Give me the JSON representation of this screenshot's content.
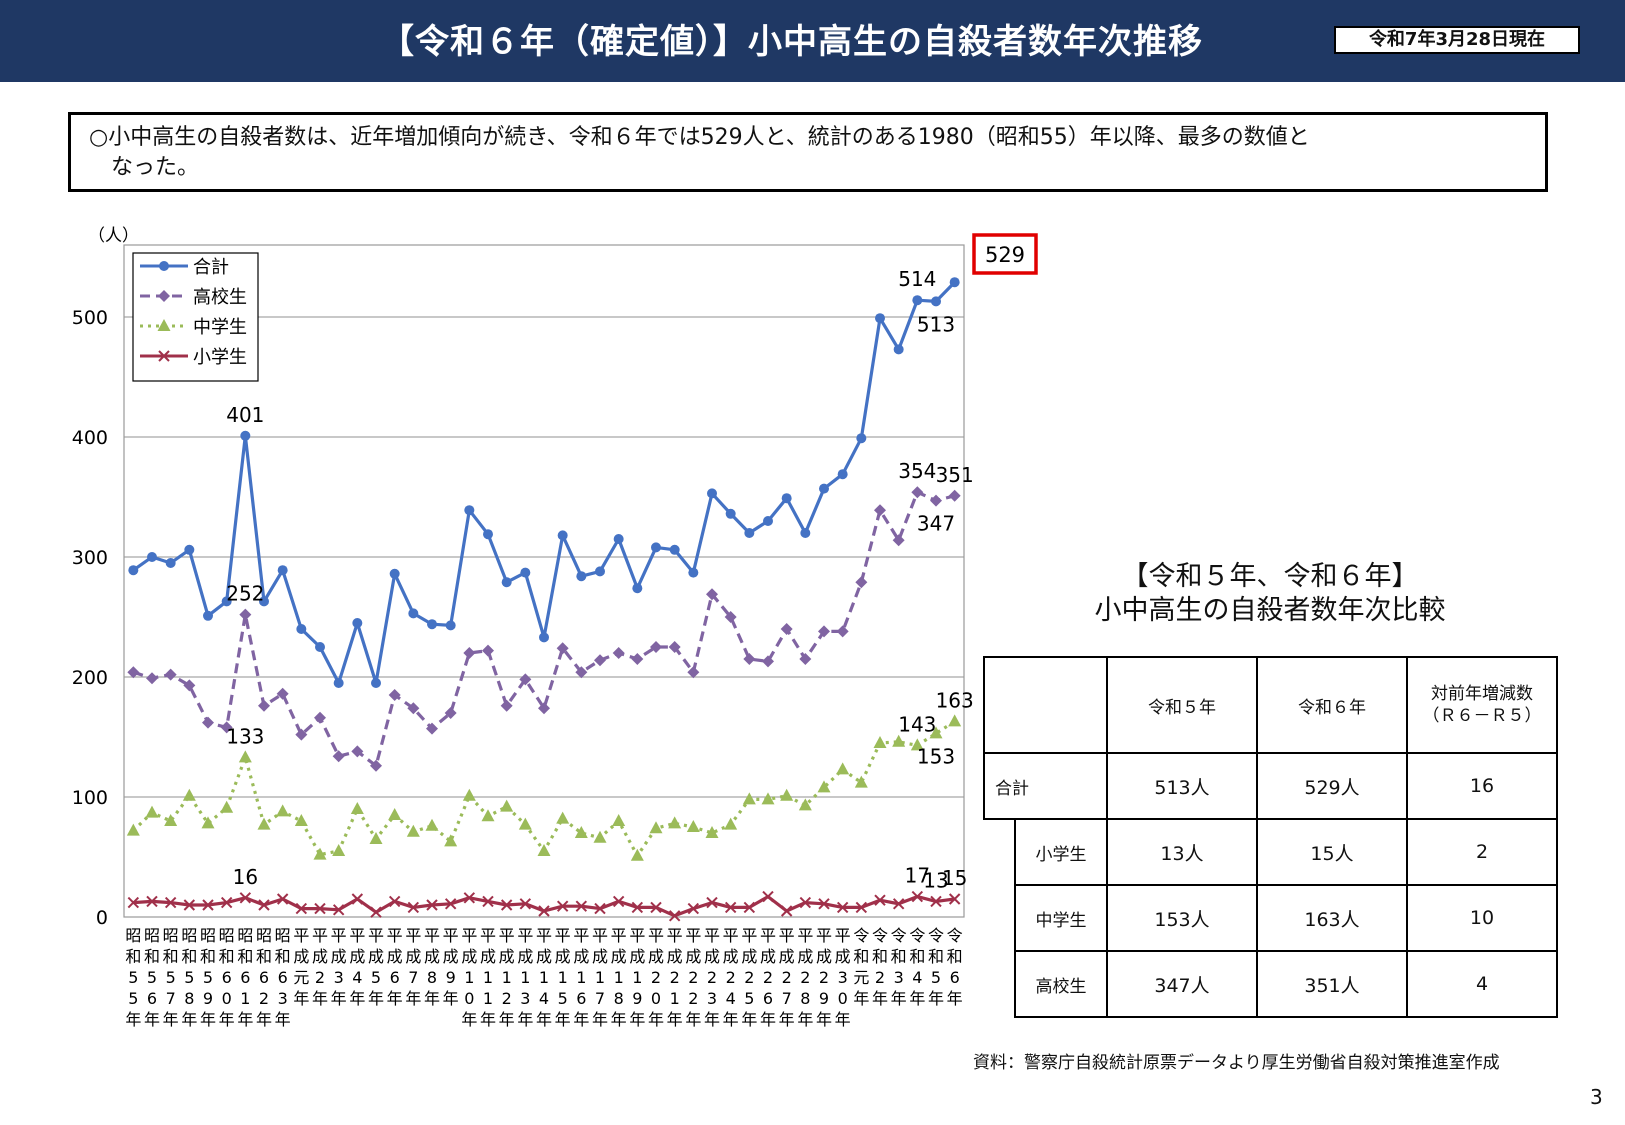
{
  "header": {
    "title": "【令和６年（確定値）】小中高生の自殺者数年次推移",
    "date": "令和7年3月28日現在"
  },
  "summary": {
    "line1": "○小中高生の自殺者数は、近年増加傾向が続き、令和６年では529人と、統計のある1980（昭和55）年以降、最多の数値と",
    "line2": "なった。"
  },
  "chart_data": {
    "type": "line",
    "ylabel": "（人）",
    "ylim": [
      0,
      560
    ],
    "yticks": [
      0,
      100,
      200,
      300,
      400,
      500
    ],
    "grid": true,
    "legend_position": "top-left",
    "x_labels": [
      [
        "昭",
        "和",
        "5",
        "5",
        "年"
      ],
      [
        "昭",
        "和",
        "5",
        "6",
        "年"
      ],
      [
        "昭",
        "和",
        "5",
        "7",
        "年"
      ],
      [
        "昭",
        "和",
        "5",
        "8",
        "年"
      ],
      [
        "昭",
        "和",
        "5",
        "9",
        "年"
      ],
      [
        "昭",
        "和",
        "6",
        "0",
        "年"
      ],
      [
        "昭",
        "和",
        "6",
        "1",
        "年"
      ],
      [
        "昭",
        "和",
        "6",
        "2",
        "年"
      ],
      [
        "昭",
        "和",
        "6",
        "3",
        "年"
      ],
      [
        "平",
        "成",
        "元",
        "年"
      ],
      [
        "平",
        "成",
        "2",
        "年"
      ],
      [
        "平",
        "成",
        "3",
        "年"
      ],
      [
        "平",
        "成",
        "4",
        "年"
      ],
      [
        "平",
        "成",
        "5",
        "年"
      ],
      [
        "平",
        "成",
        "6",
        "年"
      ],
      [
        "平",
        "成",
        "7",
        "年"
      ],
      [
        "平",
        "成",
        "8",
        "年"
      ],
      [
        "平",
        "成",
        "9",
        "年"
      ],
      [
        "平",
        "成",
        "1",
        "0",
        "年"
      ],
      [
        "平",
        "成",
        "1",
        "1",
        "年"
      ],
      [
        "平",
        "成",
        "1",
        "2",
        "年"
      ],
      [
        "平",
        "成",
        "1",
        "3",
        "年"
      ],
      [
        "平",
        "成",
        "1",
        "4",
        "年"
      ],
      [
        "平",
        "成",
        "1",
        "5",
        "年"
      ],
      [
        "平",
        "成",
        "1",
        "6",
        "年"
      ],
      [
        "平",
        "成",
        "1",
        "7",
        "年"
      ],
      [
        "平",
        "成",
        "1",
        "8",
        "年"
      ],
      [
        "平",
        "成",
        "1",
        "9",
        "年"
      ],
      [
        "平",
        "成",
        "2",
        "0",
        "年"
      ],
      [
        "平",
        "成",
        "2",
        "1",
        "年"
      ],
      [
        "平",
        "成",
        "2",
        "2",
        "年"
      ],
      [
        "平",
        "成",
        "2",
        "3",
        "年"
      ],
      [
        "平",
        "成",
        "2",
        "4",
        "年"
      ],
      [
        "平",
        "成",
        "2",
        "5",
        "年"
      ],
      [
        "平",
        "成",
        "2",
        "6",
        "年"
      ],
      [
        "平",
        "成",
        "2",
        "7",
        "年"
      ],
      [
        "平",
        "成",
        "2",
        "8",
        "年"
      ],
      [
        "平",
        "成",
        "2",
        "9",
        "年"
      ],
      [
        "平",
        "成",
        "3",
        "0",
        "年"
      ],
      [
        "令",
        "和",
        "元",
        "年"
      ],
      [
        "令",
        "和",
        "2",
        "年"
      ],
      [
        "令",
        "和",
        "3",
        "年"
      ],
      [
        "令",
        "和",
        "4",
        "年"
      ],
      [
        "令",
        "和",
        "5",
        "年"
      ],
      [
        "令",
        "和",
        "6",
        "年"
      ]
    ],
    "series": [
      {
        "name": "合計",
        "color": "#4472c4",
        "marker": "circle",
        "dash": "solid",
        "values": [
          289,
          300,
          295,
          306,
          251,
          263,
          401,
          263,
          289,
          240,
          225,
          195,
          245,
          195,
          286,
          253,
          244,
          243,
          339,
          319,
          279,
          287,
          233,
          318,
          284,
          288,
          315,
          274,
          308,
          306,
          287,
          353,
          336,
          320,
          330,
          349,
          320,
          357,
          369,
          399,
          499,
          473,
          514,
          513,
          529
        ]
      },
      {
        "name": "高校生",
        "color": "#8064a2",
        "marker": "diamond",
        "dash": "dashed",
        "values": [
          204,
          199,
          202,
          193,
          162,
          158,
          252,
          176,
          186,
          152,
          166,
          134,
          138,
          126,
          185,
          174,
          157,
          170,
          220,
          222,
          176,
          198,
          174,
          224,
          204,
          214,
          220,
          215,
          225,
          225,
          204,
          269,
          250,
          215,
          213,
          240,
          215,
          238,
          238,
          279,
          339,
          314,
          354,
          347,
          351
        ]
      },
      {
        "name": "中学生",
        "color": "#9bbb59",
        "marker": "triangle",
        "dash": "dotted",
        "values": [
          72,
          87,
          80,
          101,
          78,
          91,
          133,
          77,
          88,
          80,
          52,
          55,
          90,
          65,
          85,
          71,
          76,
          63,
          101,
          84,
          92,
          77,
          55,
          82,
          70,
          66,
          80,
          51,
          74,
          78,
          75,
          70,
          77,
          98,
          98,
          101,
          93,
          108,
          123,
          112,
          145,
          146,
          143,
          153,
          163
        ]
      },
      {
        "name": "小学生",
        "color": "#a0304a",
        "marker": "x",
        "dash": "solid",
        "values": [
          12,
          13,
          12,
          10,
          10,
          12,
          16,
          10,
          15,
          7,
          7,
          6,
          15,
          4,
          13,
          8,
          10,
          11,
          16,
          13,
          10,
          11,
          5,
          9,
          9,
          7,
          13,
          8,
          8,
          1,
          7,
          12,
          8,
          8,
          17,
          5,
          12,
          11,
          8,
          8,
          14,
          11,
          17,
          13,
          15
        ]
      }
    ],
    "annotations": [
      {
        "text": "401",
        "series": "合計",
        "index": 6,
        "pos": "above"
      },
      {
        "text": "252",
        "series": "高校生",
        "index": 6,
        "pos": "above"
      },
      {
        "text": "133",
        "series": "中学生",
        "index": 6,
        "pos": "above"
      },
      {
        "text": "16",
        "series": "小学生",
        "index": 6,
        "pos": "above"
      },
      {
        "text": "514",
        "series": "合計",
        "index": 42,
        "pos": "above"
      },
      {
        "text": "513",
        "series": "合計",
        "index": 43,
        "pos": "below"
      },
      {
        "text": "354",
        "series": "高校生",
        "index": 42,
        "pos": "above"
      },
      {
        "text": "351",
        "series": "高校生",
        "index": 44,
        "pos": "above"
      },
      {
        "text": "347",
        "series": "高校生",
        "index": 43,
        "pos": "below"
      },
      {
        "text": "143",
        "series": "中学生",
        "index": 42,
        "pos": "above"
      },
      {
        "text": "163",
        "series": "中学生",
        "index": 44,
        "pos": "above"
      },
      {
        "text": "153",
        "series": "中学生",
        "index": 43,
        "pos": "below"
      },
      {
        "text": "17",
        "series": "小学生",
        "index": 42,
        "pos": "above"
      },
      {
        "text": "13",
        "series": "小学生",
        "index": 43,
        "pos": "above"
      },
      {
        "text": "15",
        "series": "小学生",
        "index": 44,
        "pos": "above"
      }
    ],
    "callout": {
      "text": "529",
      "color": "#e00000"
    }
  },
  "comparison": {
    "title_line1": "【令和５年、令和６年】",
    "title_line2": "小中高生の自殺者数年次比較",
    "col1": "令和５年",
    "col2": "令和６年",
    "col3_line1": "対前年増減数",
    "col3_line2": "（Ｒ６－Ｒ５）",
    "rows": [
      {
        "label": "合計",
        "r5": "513人",
        "r6": "529人",
        "diff": "16"
      },
      {
        "label": "小学生",
        "r5": "13人",
        "r6": "15人",
        "diff": "2"
      },
      {
        "label": "中学生",
        "r5": "153人",
        "r6": "163人",
        "diff": "10"
      },
      {
        "label": "高校生",
        "r5": "347人",
        "r6": "351人",
        "diff": "4"
      }
    ]
  },
  "source": "資料：警察庁自殺統計原票データより厚生労働省自殺対策推進室作成",
  "page_number": "3"
}
